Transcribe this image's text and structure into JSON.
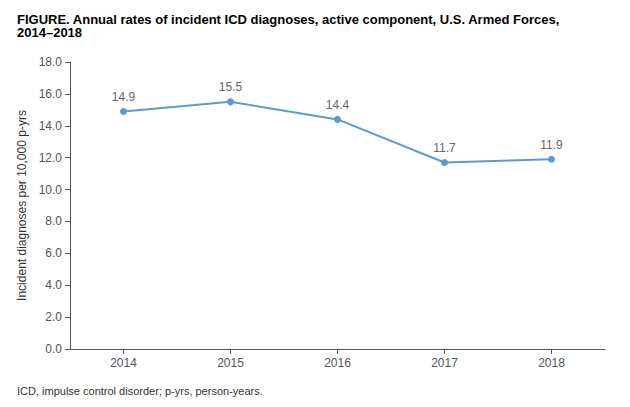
{
  "chart_data": {
    "type": "line",
    "title": "FIGURE. Annual rates of incident ICD diagnoses, active component, U.S. Armed Forces, 2014–2018",
    "annotations": [
      "ICD, impulse control disorder; p-yrs, person-years."
    ],
    "ylabel": "Incident diagnoses per 10,000 p-yrs",
    "x": [
      2014,
      2015,
      2016,
      2017,
      2018
    ],
    "values": [
      14.9,
      15.5,
      14.4,
      11.7,
      11.9
    ],
    "color": "#5b9bd5",
    "marker": "circle",
    "xlim": [
      2013.5,
      2018.5
    ],
    "xticks": [
      2014,
      2015,
      2016,
      2017,
      2018
    ],
    "ylim": [
      0,
      18.0
    ],
    "yticks": [
      {
        "value": 0,
        "label": "0.0"
      },
      {
        "value": 2,
        "label": "2.0"
      },
      {
        "value": 4,
        "label": "4.0"
      },
      {
        "value": 6,
        "label": "6.0"
      },
      {
        "value": 8,
        "label": "8.0"
      },
      {
        "value": 10,
        "label": "10.0"
      },
      {
        "value": 12,
        "label": "12.0"
      },
      {
        "value": 14,
        "label": "14.0"
      },
      {
        "value": 16,
        "label": "16.0"
      },
      {
        "value": 18,
        "label": "18.0"
      }
    ],
    "data_labels": true,
    "grid": false
  }
}
